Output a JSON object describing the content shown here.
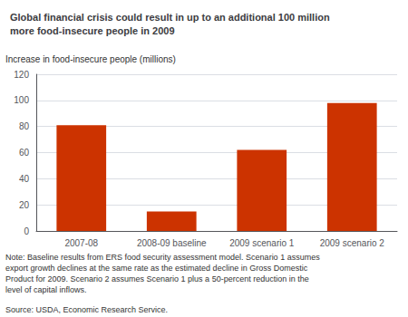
{
  "chart_data": {
    "type": "bar",
    "title": "Global financial crisis could result in up to an additional 100 million\nmore food-insecure people in 2009",
    "ylabel": "Increase in food-insecure people (millions)",
    "categories": [
      "2007-08",
      "2008-09 baseline",
      "2009 scenario 1",
      "2009 scenario 2"
    ],
    "values": [
      81,
      15,
      62,
      98
    ],
    "color": "#cc3300",
    "ylim": [
      0,
      120
    ],
    "yticks": [
      0,
      20,
      40,
      60,
      80,
      100,
      120
    ],
    "grid": true,
    "annotations": [
      "Note: Baseline results from ERS food security assessment model. Scenario 1 assumes\nexport growth declines at the same rate as the estimated decline in Gross Domestic\nProduct for 2009. Scenario 2 assumes Scenario 1 plus a 50-percent reduction in the\nlevel of capital inflows.",
      "Source: USDA, Economic Research Service."
    ]
  }
}
